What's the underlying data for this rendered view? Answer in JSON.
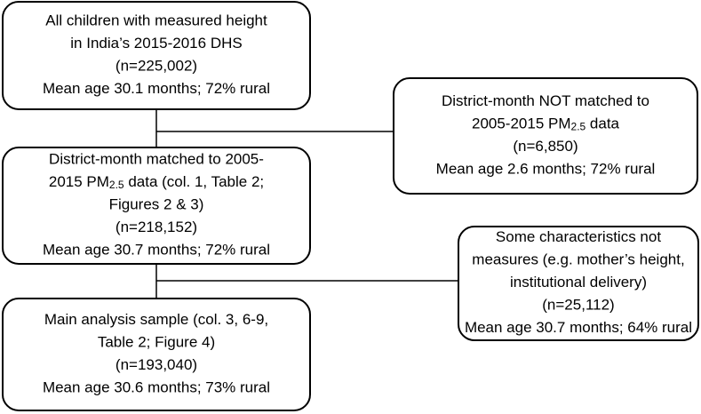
{
  "nodes": [
    {
      "lines": [
        [
          "All children with measured height"
        ],
        [
          "in India’s 2015-2016 DHS"
        ],
        [
          "(n=225,002)"
        ],
        [
          "Mean age 30.1 months; 72% rural"
        ]
      ]
    },
    {
      "lines": [
        [
          "District-month NOT matched to"
        ],
        [
          "2005-2015 PM",
          "2.5",
          " data"
        ],
        [
          "(n=6,850)"
        ],
        [
          "Mean age 2.6 months; 72% rural"
        ]
      ]
    },
    {
      "lines": [
        [
          "District-month matched to 2005-"
        ],
        [
          "2015 PM",
          "2.5",
          " data (col. 1, Table 2;"
        ],
        [
          "Figures 2 & 3)"
        ],
        [
          "(n=218,152)"
        ],
        [
          "Mean age 30.7 months; 72% rural"
        ]
      ]
    },
    {
      "lines": [
        [
          "Some characteristics not"
        ],
        [
          "measures (e.g. mother’s height,"
        ],
        [
          "institutional delivery)"
        ],
        [
          "(n=25,112)"
        ],
        [
          "Mean age 30.7 months; 64% rural"
        ]
      ]
    },
    {
      "lines": [
        [
          "Main analysis sample (col. 3, 6-9,"
        ],
        [
          "Table 2; Figure 4)"
        ],
        [
          "(n=193,040)"
        ],
        [
          "Mean age 30.6 months; 73% rural"
        ]
      ]
    }
  ]
}
